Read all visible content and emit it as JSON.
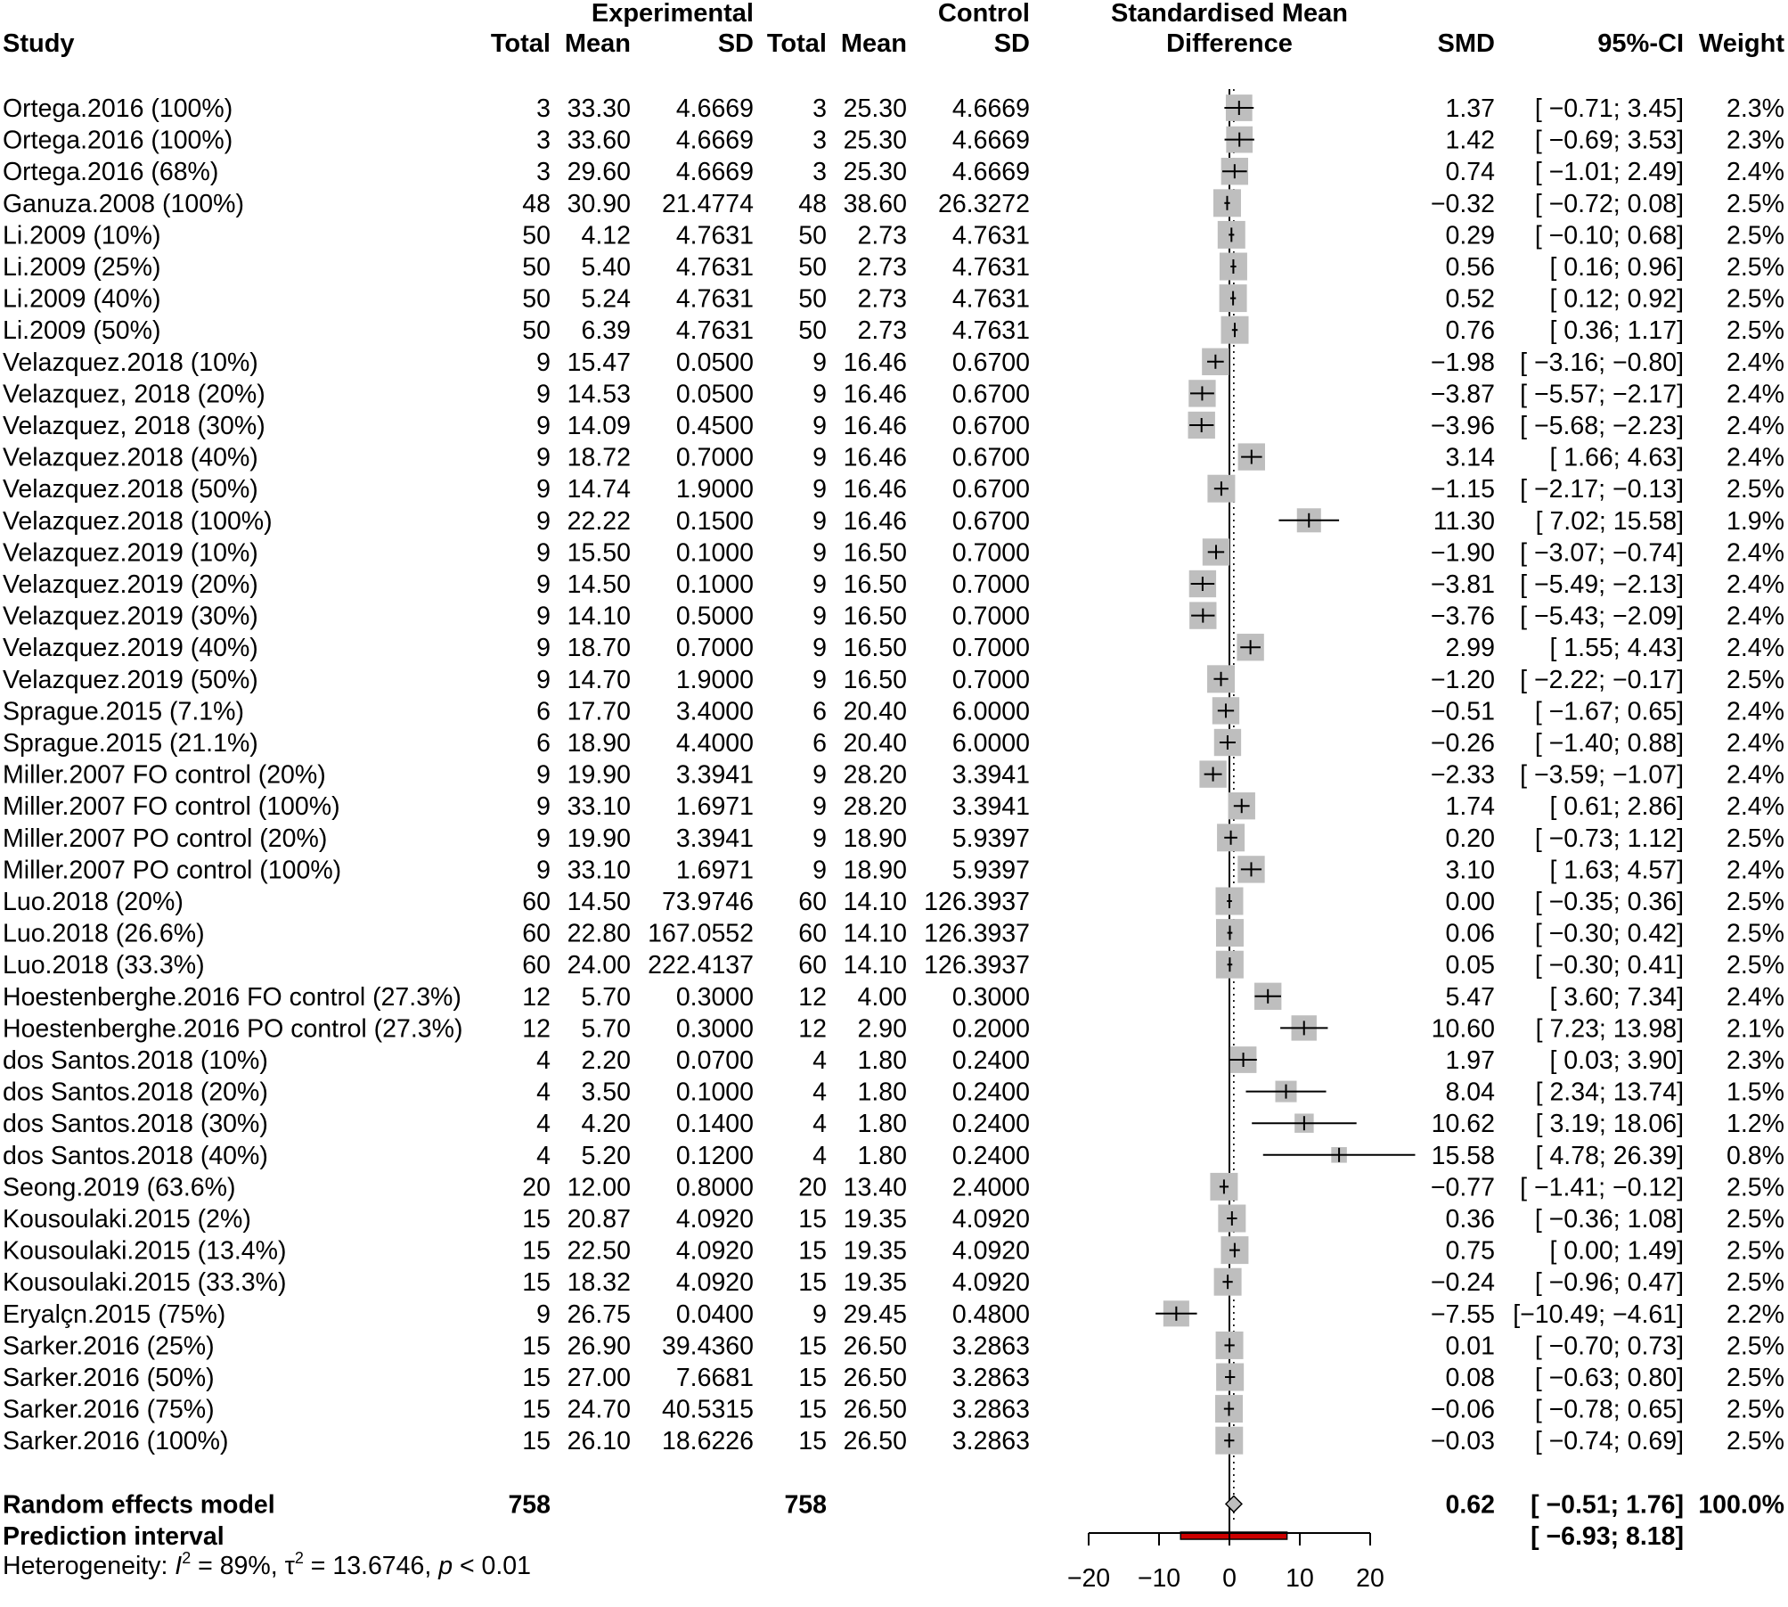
{
  "chart_data": {
    "type": "forest",
    "headers": {
      "group_experimental": "Experimental",
      "group_control": "Control",
      "smd_title_line1": "Standardised Mean",
      "smd_title_line2": "Difference",
      "study": "Study",
      "e_total": "Total",
      "e_mean": "Mean",
      "e_sd": "SD",
      "c_total": "Total",
      "c_mean": "Mean",
      "c_sd": "SD",
      "smd": "SMD",
      "ci": "95%-CI",
      "weight": "Weight"
    },
    "studies": [
      {
        "study": "Ortega.2016 (100%)",
        "e_total": "3",
        "e_mean": "33.30",
        "e_sd": "4.6669",
        "c_total": "3",
        "c_mean": "25.30",
        "c_sd": "4.6669",
        "smd_text": "1.37",
        "ci_text": "[ −0.71;  3.45]",
        "weight": "2.3%",
        "smd": 1.37,
        "lo": -0.71,
        "hi": 3.45,
        "w": 2.3
      },
      {
        "study": "Ortega.2016 (100%)",
        "e_total": "3",
        "e_mean": "33.60",
        "e_sd": "4.6669",
        "c_total": "3",
        "c_mean": "25.30",
        "c_sd": "4.6669",
        "smd_text": "1.42",
        "ci_text": "[ −0.69;  3.53]",
        "weight": "2.3%",
        "smd": 1.42,
        "lo": -0.69,
        "hi": 3.53,
        "w": 2.3
      },
      {
        "study": "Ortega.2016 (68%)",
        "e_total": "3",
        "e_mean": "29.60",
        "e_sd": "4.6669",
        "c_total": "3",
        "c_mean": "25.30",
        "c_sd": "4.6669",
        "smd_text": "0.74",
        "ci_text": "[ −1.01;  2.49]",
        "weight": "2.4%",
        "smd": 0.74,
        "lo": -1.01,
        "hi": 2.49,
        "w": 2.4
      },
      {
        "study": "Ganuza.2008 (100%)",
        "e_total": "48",
        "e_mean": "30.90",
        "e_sd": "21.4774",
        "c_total": "48",
        "c_mean": "38.60",
        "c_sd": "26.3272",
        "smd_text": "−0.32",
        "ci_text": "[ −0.72;  0.08]",
        "weight": "2.5%",
        "smd": -0.32,
        "lo": -0.72,
        "hi": 0.08,
        "w": 2.5
      },
      {
        "study": "Li.2009 (10%)",
        "e_total": "50",
        "e_mean": "4.12",
        "e_sd": "4.7631",
        "c_total": "50",
        "c_mean": "2.73",
        "c_sd": "4.7631",
        "smd_text": "0.29",
        "ci_text": "[ −0.10;  0.68]",
        "weight": "2.5%",
        "smd": 0.29,
        "lo": -0.1,
        "hi": 0.68,
        "w": 2.5
      },
      {
        "study": "Li.2009 (25%)",
        "e_total": "50",
        "e_mean": "5.40",
        "e_sd": "4.7631",
        "c_total": "50",
        "c_mean": "2.73",
        "c_sd": "4.7631",
        "smd_text": "0.56",
        "ci_text": "[  0.16;  0.96]",
        "weight": "2.5%",
        "smd": 0.56,
        "lo": 0.16,
        "hi": 0.96,
        "w": 2.5
      },
      {
        "study": "Li.2009 (40%)",
        "e_total": "50",
        "e_mean": "5.24",
        "e_sd": "4.7631",
        "c_total": "50",
        "c_mean": "2.73",
        "c_sd": "4.7631",
        "smd_text": "0.52",
        "ci_text": "[  0.12;  0.92]",
        "weight": "2.5%",
        "smd": 0.52,
        "lo": 0.12,
        "hi": 0.92,
        "w": 2.5
      },
      {
        "study": "Li.2009 (50%)",
        "e_total": "50",
        "e_mean": "6.39",
        "e_sd": "4.7631",
        "c_total": "50",
        "c_mean": "2.73",
        "c_sd": "4.7631",
        "smd_text": "0.76",
        "ci_text": "[  0.36;  1.17]",
        "weight": "2.5%",
        "smd": 0.76,
        "lo": 0.36,
        "hi": 1.17,
        "w": 2.5
      },
      {
        "study": "Velazquez.2018 (10%)",
        "e_total": "9",
        "e_mean": "15.47",
        "e_sd": "0.0500",
        "c_total": "9",
        "c_mean": "16.46",
        "c_sd": "0.6700",
        "smd_text": "−1.98",
        "ci_text": "[ −3.16; −0.80]",
        "weight": "2.4%",
        "smd": -1.98,
        "lo": -3.16,
        "hi": -0.8,
        "w": 2.4
      },
      {
        "study": "Velazquez, 2018 (20%)",
        "e_total": "9",
        "e_mean": "14.53",
        "e_sd": "0.0500",
        "c_total": "9",
        "c_mean": "16.46",
        "c_sd": "0.6700",
        "smd_text": "−3.87",
        "ci_text": "[ −5.57; −2.17]",
        "weight": "2.4%",
        "smd": -3.87,
        "lo": -5.57,
        "hi": -2.17,
        "w": 2.4
      },
      {
        "study": "Velazquez, 2018 (30%)",
        "e_total": "9",
        "e_mean": "14.09",
        "e_sd": "0.4500",
        "c_total": "9",
        "c_mean": "16.46",
        "c_sd": "0.6700",
        "smd_text": "−3.96",
        "ci_text": "[ −5.68; −2.23]",
        "weight": "2.4%",
        "smd": -3.96,
        "lo": -5.68,
        "hi": -2.23,
        "w": 2.4
      },
      {
        "study": "Velazquez.2018 (40%)",
        "e_total": "9",
        "e_mean": "18.72",
        "e_sd": "0.7000",
        "c_total": "9",
        "c_mean": "16.46",
        "c_sd": "0.6700",
        "smd_text": "3.14",
        "ci_text": "[  1.66;  4.63]",
        "weight": "2.4%",
        "smd": 3.14,
        "lo": 1.66,
        "hi": 4.63,
        "w": 2.4
      },
      {
        "study": "Velazquez.2018 (50%)",
        "e_total": "9",
        "e_mean": "14.74",
        "e_sd": "1.9000",
        "c_total": "9",
        "c_mean": "16.46",
        "c_sd": "0.6700",
        "smd_text": "−1.15",
        "ci_text": "[ −2.17; −0.13]",
        "weight": "2.5%",
        "smd": -1.15,
        "lo": -2.17,
        "hi": -0.13,
        "w": 2.5
      },
      {
        "study": "Velazquez.2018 (100%)",
        "e_total": "9",
        "e_mean": "22.22",
        "e_sd": "0.1500",
        "c_total": "9",
        "c_mean": "16.46",
        "c_sd": "0.6700",
        "smd_text": "11.30",
        "ci_text": "[  7.02; 15.58]",
        "weight": "1.9%",
        "smd": 11.3,
        "lo": 7.02,
        "hi": 15.58,
        "w": 1.9
      },
      {
        "study": "Velazquez.2019 (10%)",
        "e_total": "9",
        "e_mean": "15.50",
        "e_sd": "0.1000",
        "c_total": "9",
        "c_mean": "16.50",
        "c_sd": "0.7000",
        "smd_text": "−1.90",
        "ci_text": "[ −3.07; −0.74]",
        "weight": "2.4%",
        "smd": -1.9,
        "lo": -3.07,
        "hi": -0.74,
        "w": 2.4
      },
      {
        "study": "Velazquez.2019 (20%)",
        "e_total": "9",
        "e_mean": "14.50",
        "e_sd": "0.1000",
        "c_total": "9",
        "c_mean": "16.50",
        "c_sd": "0.7000",
        "smd_text": "−3.81",
        "ci_text": "[ −5.49; −2.13]",
        "weight": "2.4%",
        "smd": -3.81,
        "lo": -5.49,
        "hi": -2.13,
        "w": 2.4
      },
      {
        "study": "Velazquez.2019 (30%)",
        "e_total": "9",
        "e_mean": "14.10",
        "e_sd": "0.5000",
        "c_total": "9",
        "c_mean": "16.50",
        "c_sd": "0.7000",
        "smd_text": "−3.76",
        "ci_text": "[ −5.43; −2.09]",
        "weight": "2.4%",
        "smd": -3.76,
        "lo": -5.43,
        "hi": -2.09,
        "w": 2.4
      },
      {
        "study": "Velazquez.2019 (40%)",
        "e_total": "9",
        "e_mean": "18.70",
        "e_sd": "0.7000",
        "c_total": "9",
        "c_mean": "16.50",
        "c_sd": "0.7000",
        "smd_text": "2.99",
        "ci_text": "[  1.55;  4.43]",
        "weight": "2.4%",
        "smd": 2.99,
        "lo": 1.55,
        "hi": 4.43,
        "w": 2.4
      },
      {
        "study": "Velazquez.2019 (50%)",
        "e_total": "9",
        "e_mean": "14.70",
        "e_sd": "1.9000",
        "c_total": "9",
        "c_mean": "16.50",
        "c_sd": "0.7000",
        "smd_text": "−1.20",
        "ci_text": "[ −2.22; −0.17]",
        "weight": "2.5%",
        "smd": -1.2,
        "lo": -2.22,
        "hi": -0.17,
        "w": 2.5
      },
      {
        "study": "Sprague.2015 (7.1%)",
        "e_total": "6",
        "e_mean": "17.70",
        "e_sd": "3.4000",
        "c_total": "6",
        "c_mean": "20.40",
        "c_sd": "6.0000",
        "smd_text": "−0.51",
        "ci_text": "[ −1.67;  0.65]",
        "weight": "2.4%",
        "smd": -0.51,
        "lo": -1.67,
        "hi": 0.65,
        "w": 2.4
      },
      {
        "study": "Sprague.2015  (21.1%)",
        "e_total": "6",
        "e_mean": "18.90",
        "e_sd": "4.4000",
        "c_total": "6",
        "c_mean": "20.40",
        "c_sd": "6.0000",
        "smd_text": "−0.26",
        "ci_text": "[ −1.40;  0.88]",
        "weight": "2.4%",
        "smd": -0.26,
        "lo": -1.4,
        "hi": 0.88,
        "w": 2.4
      },
      {
        "study": "Miller.2007 FO control (20%)",
        "e_total": "9",
        "e_mean": "19.90",
        "e_sd": "3.3941",
        "c_total": "9",
        "c_mean": "28.20",
        "c_sd": "3.3941",
        "smd_text": "−2.33",
        "ci_text": "[ −3.59; −1.07]",
        "weight": "2.4%",
        "smd": -2.33,
        "lo": -3.59,
        "hi": -1.07,
        "w": 2.4
      },
      {
        "study": "Miller.2007 FO control (100%)",
        "e_total": "9",
        "e_mean": "33.10",
        "e_sd": "1.6971",
        "c_total": "9",
        "c_mean": "28.20",
        "c_sd": "3.3941",
        "smd_text": "1.74",
        "ci_text": "[  0.61;  2.86]",
        "weight": "2.4%",
        "smd": 1.74,
        "lo": 0.61,
        "hi": 2.86,
        "w": 2.4
      },
      {
        "study": "Miller.2007 PO control (20%)",
        "e_total": "9",
        "e_mean": "19.90",
        "e_sd": "3.3941",
        "c_total": "9",
        "c_mean": "18.90",
        "c_sd": "5.9397",
        "smd_text": "0.20",
        "ci_text": "[ −0.73;  1.12]",
        "weight": "2.5%",
        "smd": 0.2,
        "lo": -0.73,
        "hi": 1.12,
        "w": 2.5
      },
      {
        "study": "Miller.2007 PO control (100%)",
        "e_total": "9",
        "e_mean": "33.10",
        "e_sd": "1.6971",
        "c_total": "9",
        "c_mean": "18.90",
        "c_sd": "5.9397",
        "smd_text": "3.10",
        "ci_text": "[  1.63;  4.57]",
        "weight": "2.4%",
        "smd": 3.1,
        "lo": 1.63,
        "hi": 4.57,
        "w": 2.4
      },
      {
        "study": "Luo.2018 (20%)",
        "e_total": "60",
        "e_mean": "14.50",
        "e_sd": "73.9746",
        "c_total": "60",
        "c_mean": "14.10",
        "c_sd": "126.3937",
        "smd_text": "0.00",
        "ci_text": "[ −0.35;  0.36]",
        "weight": "2.5%",
        "smd": 0.0,
        "lo": -0.35,
        "hi": 0.36,
        "w": 2.5
      },
      {
        "study": "Luo.2018 (26.6%)",
        "e_total": "60",
        "e_mean": "22.80",
        "e_sd": "167.0552",
        "c_total": "60",
        "c_mean": "14.10",
        "c_sd": "126.3937",
        "smd_text": "0.06",
        "ci_text": "[ −0.30;  0.42]",
        "weight": "2.5%",
        "smd": 0.06,
        "lo": -0.3,
        "hi": 0.42,
        "w": 2.5
      },
      {
        "study": "Luo.2018 (33.3%)",
        "e_total": "60",
        "e_mean": "24.00",
        "e_sd": "222.4137",
        "c_total": "60",
        "c_mean": "14.10",
        "c_sd": "126.3937",
        "smd_text": "0.05",
        "ci_text": "[ −0.30;  0.41]",
        "weight": "2.5%",
        "smd": 0.05,
        "lo": -0.3,
        "hi": 0.41,
        "w": 2.5
      },
      {
        "study": "Hoestenberghe.2016 FO control (27.3%)",
        "e_total": "12",
        "e_mean": "5.70",
        "e_sd": "0.3000",
        "c_total": "12",
        "c_mean": "4.00",
        "c_sd": "0.3000",
        "smd_text": "5.47",
        "ci_text": "[  3.60;  7.34]",
        "weight": "2.4%",
        "smd": 5.47,
        "lo": 3.6,
        "hi": 7.34,
        "w": 2.4
      },
      {
        "study": "Hoestenberghe.2016 PO control (27.3%)",
        "e_total": "12",
        "e_mean": "5.70",
        "e_sd": "0.3000",
        "c_total": "12",
        "c_mean": "2.90",
        "c_sd": "0.2000",
        "smd_text": "10.60",
        "ci_text": "[  7.23; 13.98]",
        "weight": "2.1%",
        "smd": 10.6,
        "lo": 7.23,
        "hi": 13.98,
        "w": 2.1
      },
      {
        "study": "dos Santos.2018 (10%)",
        "e_total": "4",
        "e_mean": "2.20",
        "e_sd": "0.0700",
        "c_total": "4",
        "c_mean": "1.80",
        "c_sd": "0.2400",
        "smd_text": "1.97",
        "ci_text": "[  0.03;  3.90]",
        "weight": "2.3%",
        "smd": 1.97,
        "lo": 0.03,
        "hi": 3.9,
        "w": 2.3
      },
      {
        "study": "dos Santos.2018 (20%)",
        "e_total": "4",
        "e_mean": "3.50",
        "e_sd": "0.1000",
        "c_total": "4",
        "c_mean": "1.80",
        "c_sd": "0.2400",
        "smd_text": "8.04",
        "ci_text": "[  2.34; 13.74]",
        "weight": "1.5%",
        "smd": 8.04,
        "lo": 2.34,
        "hi": 13.74,
        "w": 1.5
      },
      {
        "study": "dos Santos.2018 (30%)",
        "e_total": "4",
        "e_mean": "4.20",
        "e_sd": "0.1400",
        "c_total": "4",
        "c_mean": "1.80",
        "c_sd": "0.2400",
        "smd_text": "10.62",
        "ci_text": "[  3.19; 18.06]",
        "weight": "1.2%",
        "smd": 10.62,
        "lo": 3.19,
        "hi": 18.06,
        "w": 1.2
      },
      {
        "study": "dos Santos.2018 (40%)",
        "e_total": "4",
        "e_mean": "5.20",
        "e_sd": "0.1200",
        "c_total": "4",
        "c_mean": "1.80",
        "c_sd": "0.2400",
        "smd_text": "15.58",
        "ci_text": "[  4.78; 26.39]",
        "weight": "0.8%",
        "smd": 15.58,
        "lo": 4.78,
        "hi": 26.39,
        "w": 0.8
      },
      {
        "study": "Seong.2019 (63.6%)",
        "e_total": "20",
        "e_mean": "12.00",
        "e_sd": "0.8000",
        "c_total": "20",
        "c_mean": "13.40",
        "c_sd": "2.4000",
        "smd_text": "−0.77",
        "ci_text": "[ −1.41; −0.12]",
        "weight": "2.5%",
        "smd": -0.77,
        "lo": -1.41,
        "hi": -0.12,
        "w": 2.5
      },
      {
        "study": "Kousoulaki.2015 (2%)",
        "e_total": "15",
        "e_mean": "20.87",
        "e_sd": "4.0920",
        "c_total": "15",
        "c_mean": "19.35",
        "c_sd": "4.0920",
        "smd_text": "0.36",
        "ci_text": "[ −0.36;  1.08]",
        "weight": "2.5%",
        "smd": 0.36,
        "lo": -0.36,
        "hi": 1.08,
        "w": 2.5
      },
      {
        "study": "Kousoulaki.2015 (13.4%)",
        "e_total": "15",
        "e_mean": "22.50",
        "e_sd": "4.0920",
        "c_total": "15",
        "c_mean": "19.35",
        "c_sd": "4.0920",
        "smd_text": "0.75",
        "ci_text": "[  0.00;  1.49]",
        "weight": "2.5%",
        "smd": 0.75,
        "lo": 0.0,
        "hi": 1.49,
        "w": 2.5
      },
      {
        "study": "Kousoulaki.2015 (33.3%)",
        "e_total": "15",
        "e_mean": "18.32",
        "e_sd": "4.0920",
        "c_total": "15",
        "c_mean": "19.35",
        "c_sd": "4.0920",
        "smd_text": "−0.24",
        "ci_text": "[ −0.96;  0.47]",
        "weight": "2.5%",
        "smd": -0.24,
        "lo": -0.96,
        "hi": 0.47,
        "w": 2.5
      },
      {
        "study": "Eryalçn.2015 (75%)",
        "e_total": "9",
        "e_mean": "26.75",
        "e_sd": "0.0400",
        "c_total": "9",
        "c_mean": "29.45",
        "c_sd": "0.4800",
        "smd_text": "−7.55",
        "ci_text": "[−10.49; −4.61]",
        "weight": "2.2%",
        "smd": -7.55,
        "lo": -10.49,
        "hi": -4.61,
        "w": 2.2
      },
      {
        "study": "Sarker.2016 (25%)",
        "e_total": "15",
        "e_mean": "26.90",
        "e_sd": "39.4360",
        "c_total": "15",
        "c_mean": "26.50",
        "c_sd": "3.2863",
        "smd_text": "0.01",
        "ci_text": "[ −0.70;  0.73]",
        "weight": "2.5%",
        "smd": 0.01,
        "lo": -0.7,
        "hi": 0.73,
        "w": 2.5
      },
      {
        "study": "Sarker.2016 (50%)",
        "e_total": "15",
        "e_mean": "27.00",
        "e_sd": "7.6681",
        "c_total": "15",
        "c_mean": "26.50",
        "c_sd": "3.2863",
        "smd_text": "0.08",
        "ci_text": "[ −0.63;  0.80]",
        "weight": "2.5%",
        "smd": 0.08,
        "lo": -0.63,
        "hi": 0.8,
        "w": 2.5
      },
      {
        "study": "Sarker.2016 (75%)",
        "e_total": "15",
        "e_mean": "24.70",
        "e_sd": "40.5315",
        "c_total": "15",
        "c_mean": "26.50",
        "c_sd": "3.2863",
        "smd_text": "−0.06",
        "ci_text": "[ −0.78;  0.65]",
        "weight": "2.5%",
        "smd": -0.06,
        "lo": -0.78,
        "hi": 0.65,
        "w": 2.5
      },
      {
        "study": "Sarker.2016 (100%)",
        "e_total": "15",
        "e_mean": "26.10",
        "e_sd": "18.6226",
        "c_total": "15",
        "c_mean": "26.50",
        "c_sd": "3.2863",
        "smd_text": "−0.03",
        "ci_text": "[ −0.74;  0.69]",
        "weight": "2.5%",
        "smd": -0.03,
        "lo": -0.74,
        "hi": 0.69,
        "w": 2.5
      }
    ],
    "random_effects": {
      "label": "Random effects model",
      "e_total": "758",
      "c_total": "758",
      "smd_text": "0.62",
      "ci_text": "[ −0.51;  1.76]",
      "weight": "100.0%",
      "smd": 0.62,
      "lo": -0.51,
      "hi": 1.76
    },
    "prediction_interval": {
      "label": "Prediction interval",
      "ci_text": "[ −6.93;  8.18]",
      "lo": -6.93,
      "hi": 8.18
    },
    "heterogeneity": {
      "prefix": "Heterogeneity: ",
      "i2_symbol": "I",
      "i2_sup": "2",
      "i2_value": " = 89%, ",
      "tau_symbol": "τ",
      "tau_sup": "2",
      "tau_value": " = 13.6746, ",
      "p_symbol": "p",
      "p_value": " < 0.01"
    },
    "axis": {
      "xlim": [
        -20,
        20
      ],
      "ticks": [
        -20,
        -10,
        0,
        10,
        20
      ],
      "tick_labels": [
        "−20",
        "−10",
        "0",
        "10",
        "20"
      ],
      "xlabel": "",
      "ylabel": ""
    },
    "colors": {
      "square": "#bebebe",
      "prediction_fill": "#cc0000",
      "diamond_fill": "#bebebe",
      "line": "#000000"
    }
  }
}
